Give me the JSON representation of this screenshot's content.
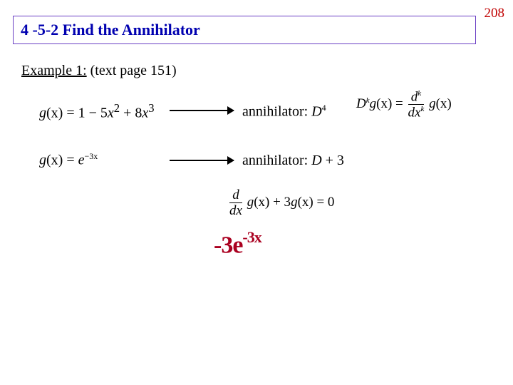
{
  "page_number": "208",
  "section_title": "4 -5-2  Find the Annihilator",
  "example": {
    "prefix": "Example 1:",
    "suffix": " (text page 151)"
  },
  "row1": {
    "g_label": "g",
    "g_arg": "(x)",
    "eq": " = 1 − 5",
    "x2": "x",
    "p2": "2",
    "plus": " + 8",
    "x3": "x",
    "p3": "3",
    "ann_label": "annihilator:  ",
    "ann_op_base": "D",
    "ann_op_exp": "4"
  },
  "operator_def": {
    "lhs_D": "D",
    "lhs_k": "k",
    "lhs_g": "g",
    "lhs_arg": "(x)",
    "eq": " = ",
    "frac_num_d": "d",
    "frac_num_k": "k",
    "frac_den_d": "dx",
    "frac_den_k": "k",
    "rhs_g": "g",
    "rhs_arg": "(x)"
  },
  "row2": {
    "g_label": "g",
    "g_arg": "(x)",
    "eq": " = ",
    "e": "e",
    "exp": "−3x",
    "ann_label": "annihilator:  ",
    "ann_op": "D",
    "ann_rest": " + 3"
  },
  "diffeq": {
    "frac_num": "d",
    "frac_den": "dx",
    "g1": "g",
    "arg1": "(x)",
    "mid": " + 3",
    "g2": "g",
    "arg2": "(x)",
    "rhs": " = 0"
  },
  "handwritten": {
    "base": "-3e",
    "exp": "-3x"
  },
  "colors": {
    "page_num": "#c00000",
    "title_text": "#0000b0",
    "title_border": "#6a3fc4",
    "body_text": "#000000",
    "handwriting": "#aa0020",
    "background": "#ffffff"
  },
  "fonts": {
    "serif": "Times New Roman",
    "handwriting": "Comic Sans MS",
    "title_size_pt": 22,
    "body_size_pt": 20,
    "pagenum_size_pt": 19,
    "handwriting_size_pt": 34
  }
}
